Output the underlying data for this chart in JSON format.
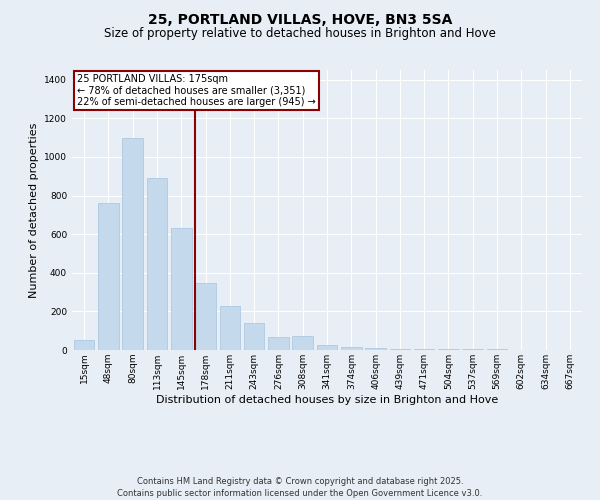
{
  "title": "25, PORTLAND VILLAS, HOVE, BN3 5SA",
  "subtitle": "Size of property relative to detached houses in Brighton and Hove",
  "xlabel": "Distribution of detached houses by size in Brighton and Hove",
  "ylabel": "Number of detached properties",
  "bar_labels": [
    "15sqm",
    "48sqm",
    "80sqm",
    "113sqm",
    "145sqm",
    "178sqm",
    "211sqm",
    "243sqm",
    "276sqm",
    "308sqm",
    "341sqm",
    "374sqm",
    "406sqm",
    "439sqm",
    "471sqm",
    "504sqm",
    "537sqm",
    "569sqm",
    "602sqm",
    "634sqm",
    "667sqm"
  ],
  "bar_values": [
    50,
    760,
    1100,
    890,
    630,
    345,
    230,
    140,
    65,
    70,
    25,
    15,
    10,
    7,
    5,
    4,
    3,
    3,
    2,
    2,
    2
  ],
  "bar_color": "#c5d9ec",
  "bar_edge_color": "#a8c4df",
  "vline_x_index": 4.55,
  "vline_color": "#8b0000",
  "annotation_title": "25 PORTLAND VILLAS: 175sqm",
  "annotation_line1": "← 78% of detached houses are smaller (3,351)",
  "annotation_line2": "22% of semi-detached houses are larger (945) →",
  "annotation_box_color": "#8b0000",
  "ylim": [
    0,
    1450
  ],
  "yticks": [
    0,
    200,
    400,
    600,
    800,
    1000,
    1200,
    1400
  ],
  "bg_color": "#e8eef5",
  "plot_bg_color": "#e8eef5",
  "footer_line1": "Contains HM Land Registry data © Crown copyright and database right 2025.",
  "footer_line2": "Contains public sector information licensed under the Open Government Licence v3.0.",
  "grid_color": "#ffffff",
  "title_fontsize": 10,
  "subtitle_fontsize": 8.5,
  "axis_label_fontsize": 8,
  "tick_fontsize": 6.5,
  "annotation_fontsize": 7,
  "footer_fontsize": 6
}
